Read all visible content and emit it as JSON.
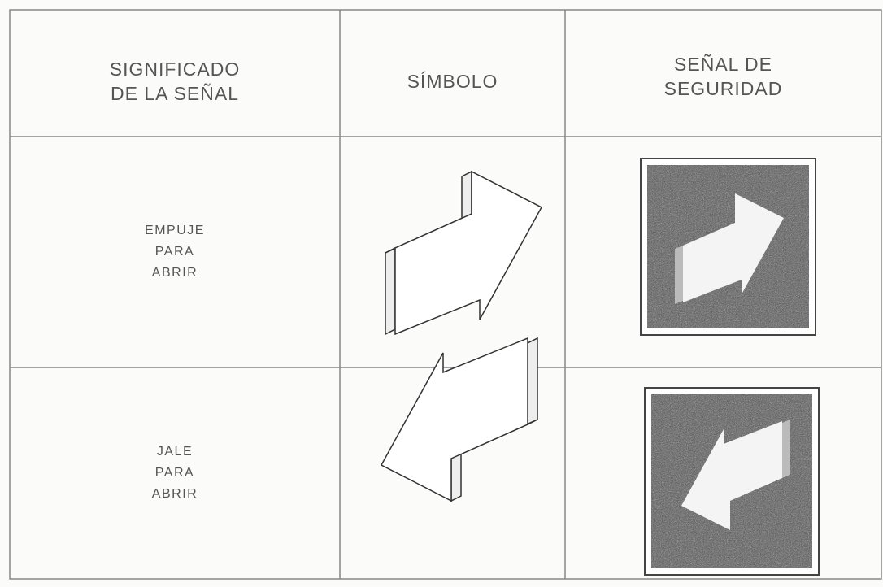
{
  "table": {
    "header": [
      [
        "SIGNIFICADO",
        "DE LA SEÑAL"
      ],
      [
        "SÍMBOLO"
      ],
      [
        "SEÑAL DE",
        "SEGURIDAD"
      ]
    ],
    "rows": [
      [
        [
          "EMPUJE",
          "PARA",
          "ABRIR"
        ]
      ],
      [
        [
          "JALE",
          "PARA",
          "ABRIR"
        ]
      ]
    ]
  }
}
